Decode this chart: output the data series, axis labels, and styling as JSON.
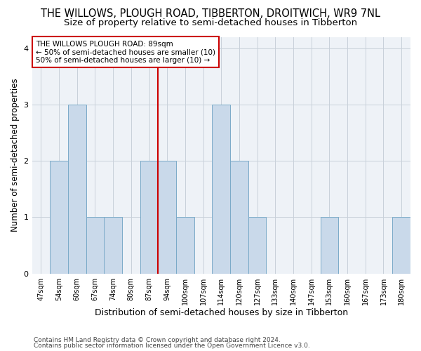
{
  "title": "THE WILLOWS, PLOUGH ROAD, TIBBERTON, DROITWICH, WR9 7NL",
  "subtitle": "Size of property relative to semi-detached houses in Tibberton",
  "xlabel": "Distribution of semi-detached houses by size in Tibberton",
  "ylabel": "Number of semi-detached properties",
  "categories": [
    "47sqm",
    "54sqm",
    "60sqm",
    "67sqm",
    "74sqm",
    "80sqm",
    "87sqm",
    "94sqm",
    "100sqm",
    "107sqm",
    "114sqm",
    "120sqm",
    "127sqm",
    "133sqm",
    "140sqm",
    "147sqm",
    "153sqm",
    "160sqm",
    "167sqm",
    "173sqm",
    "180sqm"
  ],
  "values": [
    0,
    2,
    3,
    1,
    1,
    0,
    2,
    2,
    1,
    0,
    3,
    2,
    1,
    0,
    0,
    0,
    1,
    0,
    0,
    0,
    1
  ],
  "bar_color": "#c9d9ea",
  "bar_edge_color": "#7aaac8",
  "highlight_index": 7,
  "highlight_line_color": "#cc0000",
  "annotation_text": "THE WILLOWS PLOUGH ROAD: 89sqm\n← 50% of semi-detached houses are smaller (10)\n50% of semi-detached houses are larger (10) →",
  "annotation_box_color": "#ffffff",
  "annotation_box_edge_color": "#cc0000",
  "ylim": [
    0,
    4.2
  ],
  "yticks": [
    0,
    1,
    2,
    3,
    4
  ],
  "footer_line1": "Contains HM Land Registry data © Crown copyright and database right 2024.",
  "footer_line2": "Contains public sector information licensed under the Open Government Licence v3.0.",
  "background_color": "#ffffff",
  "plot_background_color": "#eef2f7",
  "grid_color": "#c8d0da",
  "title_fontsize": 10.5,
  "subtitle_fontsize": 9.5,
  "xlabel_fontsize": 9,
  "ylabel_fontsize": 8.5,
  "tick_fontsize": 7,
  "footer_fontsize": 6.5,
  "annotation_fontsize": 7.5
}
